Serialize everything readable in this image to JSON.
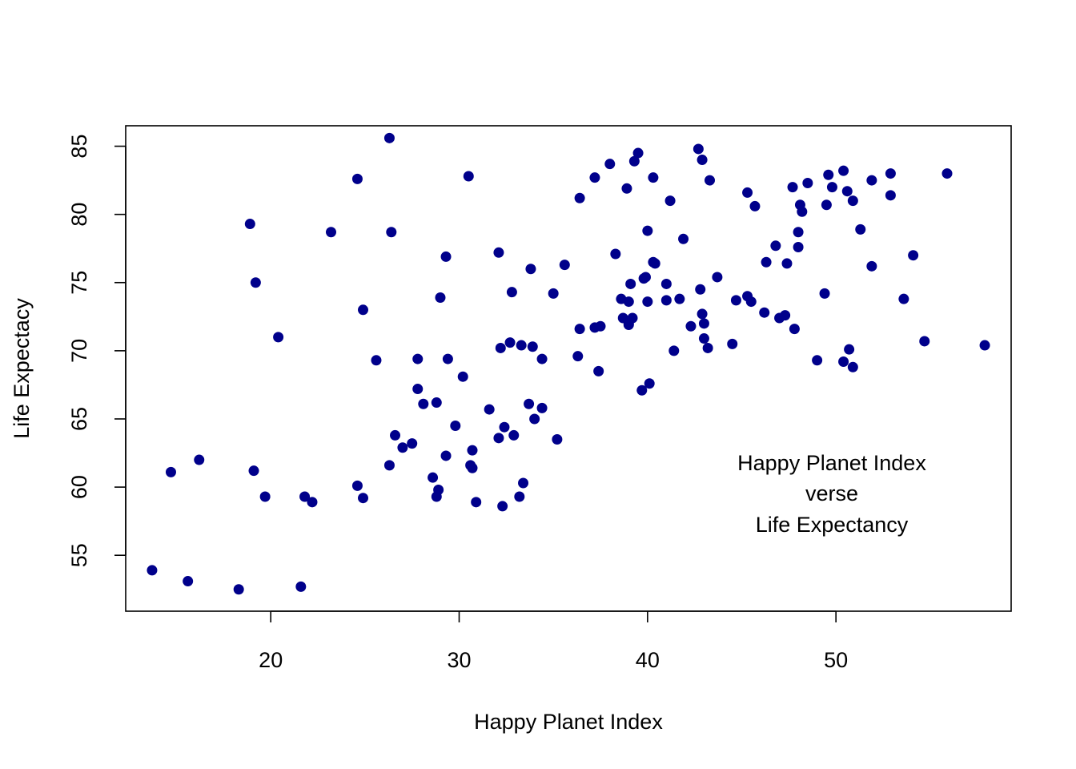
{
  "chart_data": {
    "type": "scatter",
    "title": "",
    "xlabel": "Happy Planet Index",
    "ylabel": "Life Expectacy",
    "xlim": [
      12.3,
      59.3
    ],
    "ylim": [
      50.9,
      86.5
    ],
    "x_ticks": [
      20,
      30,
      40,
      50
    ],
    "y_ticks": [
      55,
      60,
      65,
      70,
      75,
      80,
      85
    ],
    "x_tick_labels": [
      "20",
      "30",
      "40",
      "50"
    ],
    "y_tick_labels": [
      "55",
      "60",
      "65",
      "70",
      "75",
      "80",
      "85"
    ],
    "annotation": [
      "Happy Planet Index",
      "verse",
      "Life Expectancy"
    ],
    "grid": false,
    "legend": "none",
    "marker_color": "#00008B",
    "points": [
      [
        13.7,
        53.9
      ],
      [
        15.6,
        53.1
      ],
      [
        18.3,
        52.5
      ],
      [
        21.6,
        52.7
      ],
      [
        14.7,
        61.1
      ],
      [
        16.2,
        62.0
      ],
      [
        19.1,
        61.2
      ],
      [
        19.7,
        59.3
      ],
      [
        21.8,
        59.3
      ],
      [
        22.2,
        58.9
      ],
      [
        24.6,
        60.1
      ],
      [
        24.9,
        59.2
      ],
      [
        18.9,
        79.3
      ],
      [
        19.2,
        75.0
      ],
      [
        20.4,
        71.0
      ],
      [
        23.2,
        78.7
      ],
      [
        24.6,
        82.6
      ],
      [
        24.9,
        73.0
      ],
      [
        25.6,
        69.3
      ],
      [
        26.3,
        85.6
      ],
      [
        26.4,
        78.7
      ],
      [
        26.3,
        61.6
      ],
      [
        26.6,
        63.8
      ],
      [
        27.0,
        62.9
      ],
      [
        27.5,
        63.2
      ],
      [
        27.8,
        69.4
      ],
      [
        27.8,
        67.2
      ],
      [
        28.1,
        66.1
      ],
      [
        28.6,
        60.7
      ],
      [
        28.8,
        59.3
      ],
      [
        28.8,
        66.2
      ],
      [
        28.9,
        59.8
      ],
      [
        29.0,
        73.9
      ],
      [
        29.3,
        76.9
      ],
      [
        29.4,
        69.4
      ],
      [
        29.3,
        62.3
      ],
      [
        29.8,
        64.5
      ],
      [
        30.2,
        68.1
      ],
      [
        30.5,
        82.8
      ],
      [
        30.6,
        61.6
      ],
      [
        30.7,
        62.7
      ],
      [
        30.7,
        61.4
      ],
      [
        30.9,
        58.9
      ],
      [
        31.6,
        65.7
      ],
      [
        32.1,
        77.2
      ],
      [
        32.1,
        63.6
      ],
      [
        32.2,
        70.2
      ],
      [
        32.4,
        64.4
      ],
      [
        32.3,
        58.6
      ],
      [
        32.7,
        70.6
      ],
      [
        32.8,
        74.3
      ],
      [
        32.9,
        63.8
      ],
      [
        33.2,
        59.3
      ],
      [
        33.3,
        70.4
      ],
      [
        33.4,
        60.3
      ],
      [
        33.7,
        66.1
      ],
      [
        33.8,
        76.0
      ],
      [
        33.9,
        70.3
      ],
      [
        34.0,
        65.0
      ],
      [
        34.4,
        69.4
      ],
      [
        34.4,
        65.8
      ],
      [
        35.0,
        74.2
      ],
      [
        35.2,
        63.5
      ],
      [
        35.6,
        76.3
      ],
      [
        36.3,
        69.6
      ],
      [
        36.4,
        81.2
      ],
      [
        36.4,
        71.6
      ],
      [
        37.2,
        71.7
      ],
      [
        37.2,
        82.7
      ],
      [
        37.4,
        68.5
      ],
      [
        37.5,
        71.8
      ],
      [
        38.0,
        83.7
      ],
      [
        38.3,
        77.1
      ],
      [
        38.6,
        73.8
      ],
      [
        38.7,
        72.4
      ],
      [
        38.9,
        81.9
      ],
      [
        39.0,
        73.6
      ],
      [
        39.0,
        72.0
      ],
      [
        39.0,
        71.9
      ],
      [
        39.1,
        74.9
      ],
      [
        39.2,
        72.4
      ],
      [
        39.3,
        83.9
      ],
      [
        39.5,
        84.5
      ],
      [
        39.7,
        67.1
      ],
      [
        39.8,
        75.3
      ],
      [
        39.9,
        75.4
      ],
      [
        40.0,
        78.8
      ],
      [
        40.0,
        73.6
      ],
      [
        40.1,
        67.6
      ],
      [
        40.3,
        76.5
      ],
      [
        40.3,
        82.7
      ],
      [
        40.4,
        76.4
      ],
      [
        41.0,
        73.7
      ],
      [
        41.0,
        74.9
      ],
      [
        41.2,
        81.0
      ],
      [
        41.4,
        70.0
      ],
      [
        41.7,
        73.8
      ],
      [
        41.9,
        78.2
      ],
      [
        42.3,
        71.8
      ],
      [
        42.7,
        84.8
      ],
      [
        42.8,
        74.5
      ],
      [
        42.9,
        84.0
      ],
      [
        42.9,
        72.7
      ],
      [
        43.0,
        72.0
      ],
      [
        43.0,
        70.9
      ],
      [
        43.2,
        70.2
      ],
      [
        43.3,
        82.5
      ],
      [
        43.7,
        75.4
      ],
      [
        44.5,
        70.5
      ],
      [
        44.7,
        73.7
      ],
      [
        45.3,
        81.6
      ],
      [
        45.3,
        74.0
      ],
      [
        45.5,
        73.6
      ],
      [
        45.7,
        80.6
      ],
      [
        46.2,
        72.8
      ],
      [
        46.3,
        76.5
      ],
      [
        46.8,
        77.7
      ],
      [
        47.0,
        72.4
      ],
      [
        47.3,
        72.6
      ],
      [
        47.4,
        76.4
      ],
      [
        47.7,
        82.0
      ],
      [
        47.8,
        71.6
      ],
      [
        48.0,
        78.7
      ],
      [
        48.0,
        77.6
      ],
      [
        48.1,
        80.7
      ],
      [
        48.2,
        80.2
      ],
      [
        48.5,
        82.3
      ],
      [
        49.0,
        69.3
      ],
      [
        49.4,
        74.2
      ],
      [
        49.5,
        80.7
      ],
      [
        49.6,
        82.9
      ],
      [
        49.8,
        82.0
      ],
      [
        50.4,
        83.2
      ],
      [
        50.4,
        69.2
      ],
      [
        50.6,
        81.7
      ],
      [
        50.7,
        70.1
      ],
      [
        50.9,
        68.8
      ],
      [
        50.9,
        81.0
      ],
      [
        51.3,
        78.9
      ],
      [
        51.9,
        76.2
      ],
      [
        51.9,
        82.5
      ],
      [
        52.9,
        83.0
      ],
      [
        52.9,
        81.4
      ],
      [
        53.6,
        73.8
      ],
      [
        54.1,
        77.0
      ],
      [
        54.7,
        70.7
      ],
      [
        55.9,
        83.0
      ],
      [
        57.9,
        70.4
      ]
    ]
  }
}
